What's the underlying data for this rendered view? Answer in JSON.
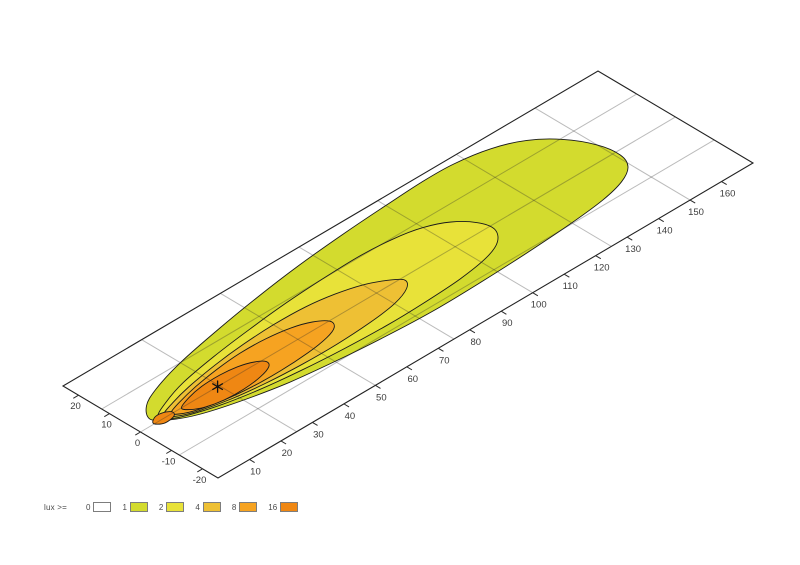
{
  "page": {
    "background": "#ffffff"
  },
  "chart_data": {
    "type": "contour",
    "subtype": "isolux-beam-pattern",
    "title": "",
    "grid_on": true,
    "projection": "oblique-ground-plane",
    "distance_axis": {
      "range_m": [
        0,
        170
      ],
      "tick_labels": [
        "10",
        "20",
        "30",
        "40",
        "50",
        "60",
        "70",
        "80",
        "90",
        "100",
        "110",
        "120",
        "130",
        "140",
        "150",
        "160"
      ],
      "tick_values": [
        10,
        20,
        30,
        40,
        50,
        60,
        70,
        80,
        90,
        100,
        110,
        120,
        130,
        140,
        150,
        160
      ],
      "grid_step_m": 25
    },
    "lateral_axis": {
      "range_m": [
        -25,
        25
      ],
      "tick_labels": [
        "20",
        "10",
        "0",
        "-10",
        "-20"
      ],
      "tick_values": [
        20,
        10,
        0,
        -10,
        -20
      ],
      "grid_step_m": 12.5
    },
    "legend": {
      "label": "lux >=",
      "levels": [
        {
          "value": "0",
          "color": "#ffffff"
        },
        {
          "value": "1",
          "color": "#d3db2e"
        },
        {
          "value": "2",
          "color": "#e8e239"
        },
        {
          "value": "4",
          "color": "#eec034"
        },
        {
          "value": "8",
          "color": "#f6a321"
        },
        {
          "value": "16",
          "color": "#ef8713"
        }
      ]
    },
    "hotspot_marker": {
      "x_m": 24.5,
      "y_m": 0,
      "symbol": "asterisk"
    },
    "contours": [
      {
        "level": 1,
        "color": "#d3db2e",
        "points": [
          [
            5,
            2
          ],
          [
            8,
            6.2
          ],
          [
            14,
            9.2
          ],
          [
            25,
            12.5
          ],
          [
            40,
            15.5
          ],
          [
            55,
            18
          ],
          [
            70,
            20
          ],
          [
            85,
            21.4
          ],
          [
            100,
            22.4
          ],
          [
            112,
            23
          ],
          [
            122,
            22.8
          ],
          [
            132,
            21
          ],
          [
            140,
            17.5
          ],
          [
            146,
            12
          ],
          [
            150,
            5
          ],
          [
            151,
            -1.5
          ],
          [
            149,
            -6
          ],
          [
            144,
            -9
          ],
          [
            136,
            -11
          ],
          [
            124,
            -12.3
          ],
          [
            110,
            -13.2
          ],
          [
            95,
            -13.8
          ],
          [
            80,
            -14
          ],
          [
            65,
            -13.3
          ],
          [
            50,
            -12
          ],
          [
            36,
            -10.2
          ],
          [
            24,
            -7.6
          ],
          [
            14,
            -4.6
          ],
          [
            8,
            -1.4
          ]
        ]
      },
      {
        "level": 2,
        "color": "#e8e239",
        "points": [
          [
            7,
            1.5
          ],
          [
            12,
            4
          ],
          [
            20,
            6.6
          ],
          [
            32,
            8.8
          ],
          [
            45,
            10.5
          ],
          [
            58,
            11.8
          ],
          [
            70,
            12.5
          ],
          [
            82,
            12.8
          ],
          [
            92,
            12.1
          ],
          [
            100,
            10.4
          ],
          [
            106,
            7.4
          ],
          [
            110,
            3
          ],
          [
            111,
            -1.5
          ],
          [
            108,
            -5.5
          ],
          [
            102,
            -8
          ],
          [
            92,
            -9.6
          ],
          [
            80,
            -10.3
          ],
          [
            68,
            -10.5
          ],
          [
            55,
            -10
          ],
          [
            42,
            -9
          ],
          [
            30,
            -7.5
          ],
          [
            20,
            -5.5
          ],
          [
            12,
            -3
          ],
          [
            8,
            -0.9
          ]
        ]
      },
      {
        "level": 4,
        "color": "#eec034",
        "points": [
          [
            8,
            0.8
          ],
          [
            13,
            2.8
          ],
          [
            20,
            4.6
          ],
          [
            30,
            6.3
          ],
          [
            40,
            7.4
          ],
          [
            50,
            7.9
          ],
          [
            60,
            7.6
          ],
          [
            68,
            6.4
          ],
          [
            75,
            4.4
          ],
          [
            80,
            1.8
          ],
          [
            83,
            -0.9
          ],
          [
            81,
            -3.6
          ],
          [
            75,
            -5.8
          ],
          [
            66,
            -7
          ],
          [
            55,
            -7.6
          ],
          [
            44,
            -7.5
          ],
          [
            33,
            -6.8
          ],
          [
            23,
            -5.5
          ],
          [
            15,
            -3.6
          ],
          [
            10,
            -1.5
          ]
        ]
      },
      {
        "level": 8,
        "color": "#f6a321",
        "points": [
          [
            10,
            0.3
          ],
          [
            14,
            1.8
          ],
          [
            21,
            3.5
          ],
          [
            29,
            4.8
          ],
          [
            37,
            5.5
          ],
          [
            45,
            5.3
          ],
          [
            52,
            4.2
          ],
          [
            57,
            2.4
          ],
          [
            60,
            -0.2
          ],
          [
            59,
            -2.6
          ],
          [
            55,
            -4.2
          ],
          [
            48,
            -5.3
          ],
          [
            39,
            -5.8
          ],
          [
            30,
            -5.6
          ],
          [
            22,
            -4.7
          ],
          [
            15,
            -3.1
          ],
          [
            11,
            -1.3
          ]
        ]
      },
      {
        "level": 16,
        "color": "#ef8713",
        "points": [
          [
            13,
            0
          ],
          [
            17,
            1.6
          ],
          [
            22,
            2.6
          ],
          [
            28,
            2.8
          ],
          [
            33,
            2.2
          ],
          [
            37,
            0.8
          ],
          [
            39,
            -1
          ],
          [
            38,
            -2.8
          ],
          [
            34,
            -4.2
          ],
          [
            28,
            -4.9
          ],
          [
            22,
            -4.7
          ],
          [
            17,
            -3.6
          ],
          [
            14,
            -1.9
          ]
        ]
      },
      {
        "level": 16,
        "color": "#ef8713",
        "points": [
          [
            4.5,
            0.6
          ],
          [
            6.5,
            1.8
          ],
          [
            9,
            1.6
          ],
          [
            10.5,
            0.3
          ],
          [
            9.5,
            -1.1
          ],
          [
            6.5,
            -1.5
          ],
          [
            4.8,
            -0.6
          ]
        ]
      }
    ]
  },
  "colors": {
    "border": "#222222",
    "grid_overlay": "rgba(45,45,45,0.32)",
    "contour_stroke": "#1a1a1a",
    "tick": "#2a2a2a",
    "tick_text": "#3c3c3c",
    "marker": "#111111"
  }
}
